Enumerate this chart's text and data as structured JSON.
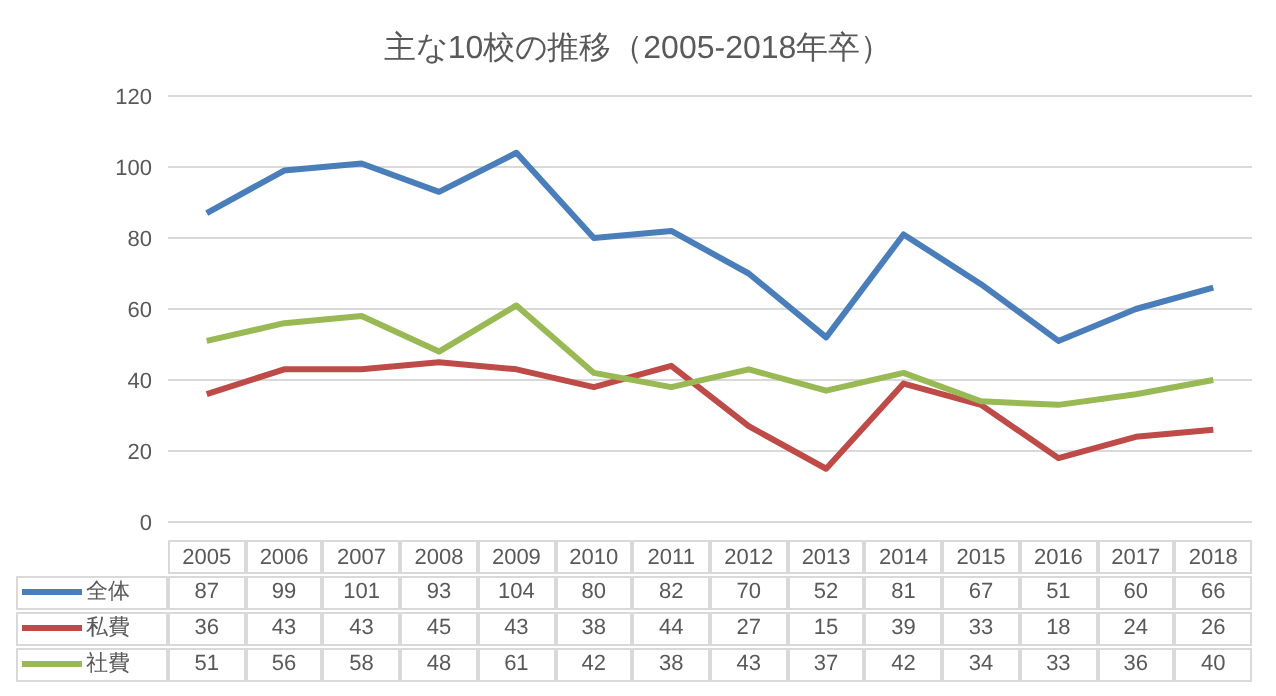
{
  "chart_data": {
    "type": "line",
    "title": "主な10校の推移（2005-2018年卒）",
    "categories": [
      "2005",
      "2006",
      "2007",
      "2008",
      "2009",
      "2010",
      "2011",
      "2012",
      "2013",
      "2014",
      "2015",
      "2016",
      "2017",
      "2018"
    ],
    "series": [
      {
        "name": "全体",
        "color": "#4a7ebb",
        "values": [
          87,
          99,
          101,
          93,
          104,
          80,
          82,
          70,
          52,
          81,
          67,
          51,
          60,
          66
        ]
      },
      {
        "name": "私費",
        "color": "#be4b48",
        "values": [
          36,
          43,
          43,
          45,
          43,
          38,
          44,
          27,
          15,
          39,
          33,
          18,
          24,
          26
        ]
      },
      {
        "name": "社費",
        "color": "#98b954",
        "values": [
          51,
          56,
          58,
          48,
          61,
          42,
          38,
          43,
          37,
          42,
          34,
          33,
          36,
          40
        ]
      }
    ],
    "ylim": [
      0,
      120
    ],
    "yticks": [
      0,
      20,
      40,
      60,
      80,
      100,
      120
    ],
    "grid": "y",
    "legend": "bottom",
    "data_labels": true,
    "marker": "none",
    "line_style": "solid"
  }
}
